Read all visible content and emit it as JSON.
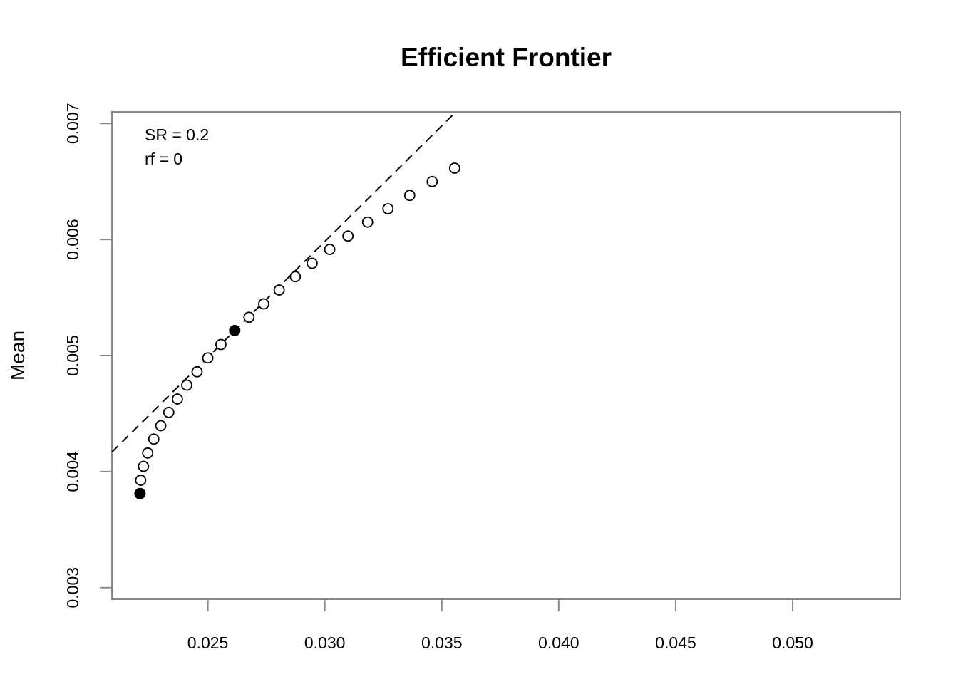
{
  "chart_data": {
    "type": "scatter",
    "title": "Efficient Frontier",
    "xlabel": "",
    "ylabel": "Mean",
    "xlim": [
      0.0209,
      0.0546
    ],
    "ylim": [
      0.0029,
      0.0071
    ],
    "x_ticks": [
      {
        "value": 0.025,
        "label": "0.025"
      },
      {
        "value": 0.03,
        "label": "0.030"
      },
      {
        "value": 0.035,
        "label": "0.035"
      },
      {
        "value": 0.04,
        "label": "0.040"
      },
      {
        "value": 0.045,
        "label": "0.045"
      },
      {
        "value": 0.05,
        "label": "0.050"
      }
    ],
    "y_ticks": [
      {
        "value": 0.003,
        "label": "0.003"
      },
      {
        "value": 0.004,
        "label": "0.004"
      },
      {
        "value": 0.005,
        "label": "0.005"
      },
      {
        "value": 0.006,
        "label": "0.006"
      },
      {
        "value": 0.007,
        "label": "0.007"
      }
    ],
    "frontier_points": [
      {
        "x": 0.02213,
        "y": 0.003925
      },
      {
        "x": 0.02225,
        "y": 0.004045
      },
      {
        "x": 0.02243,
        "y": 0.00416
      },
      {
        "x": 0.02269,
        "y": 0.00428
      },
      {
        "x": 0.02299,
        "y": 0.004395
      },
      {
        "x": 0.02333,
        "y": 0.00451
      },
      {
        "x": 0.0237,
        "y": 0.004625
      },
      {
        "x": 0.0241,
        "y": 0.004745
      },
      {
        "x": 0.02454,
        "y": 0.00486
      },
      {
        "x": 0.025,
        "y": 0.00498
      },
      {
        "x": 0.02556,
        "y": 0.005095
      },
      {
        "x": 0.02676,
        "y": 0.00533
      },
      {
        "x": 0.02739,
        "y": 0.005445
      },
      {
        "x": 0.02805,
        "y": 0.005565
      },
      {
        "x": 0.02874,
        "y": 0.00568
      },
      {
        "x": 0.02946,
        "y": 0.005795
      },
      {
        "x": 0.03021,
        "y": 0.005915
      },
      {
        "x": 0.03099,
        "y": 0.00603
      },
      {
        "x": 0.03183,
        "y": 0.00615
      },
      {
        "x": 0.0327,
        "y": 0.006265
      },
      {
        "x": 0.03363,
        "y": 0.00638
      },
      {
        "x": 0.03459,
        "y": 0.0065
      },
      {
        "x": 0.03555,
        "y": 0.006615
      }
    ],
    "highlighted_points": [
      {
        "x": 0.0221,
        "y": 0.00381
      },
      {
        "x": 0.02615,
        "y": 0.005215
      }
    ],
    "tangency_line": {
      "slope": 0.19942,
      "intercept": 0.0
    },
    "annotations": [
      "SR = 0.2",
      "rf = 0"
    ],
    "grid": false,
    "legend": "none",
    "colors": {
      "frame": "#888888",
      "marker": "#000000",
      "line": "#000000"
    }
  }
}
